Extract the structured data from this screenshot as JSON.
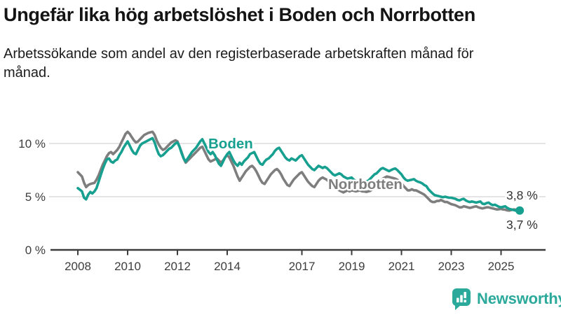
{
  "header": {
    "title": "Ungefär lika hög arbetslöshet i Boden och Norrbotten",
    "subtitle": "Arbetssökande som andel av den registerbaserade arbetskraften månad för månad."
  },
  "footer": {
    "brand": "Newsworthy",
    "logo_icon": "bar-chart-speech-bubble-icon"
  },
  "colors": {
    "boden_line": "#17a08f",
    "norrbotten_line": "#7e7e7e",
    "brand_teal": "#2ba99a",
    "grid": "#dcdcdc",
    "axis": "#3c3c3c",
    "tick_text": "#3d3d3d",
    "end_label_text": "#333333"
  },
  "chart_data": {
    "type": "line",
    "title": "Ungefär lika hög arbetslöshet i Boden och Norrbotten",
    "xlabel": "",
    "ylabel": "",
    "x_unit": "month",
    "x_start": "2008-01",
    "x_end": "2025-10",
    "xlim": [
      2008,
      2026.8
    ],
    "ylim": [
      0,
      12.2
    ],
    "grid": "horizontal",
    "legend_position": "inline-labels",
    "yticks": [
      {
        "v": 0,
        "label": "0 %"
      },
      {
        "v": 5,
        "label": "5 %"
      },
      {
        "v": 10,
        "label": "10 %"
      }
    ],
    "xticks": [
      {
        "v": 2008,
        "label": "2008"
      },
      {
        "v": 2010,
        "label": "2010"
      },
      {
        "v": 2012,
        "label": "2012"
      },
      {
        "v": 2014,
        "label": "2014"
      },
      {
        "v": 2017,
        "label": "2017"
      },
      {
        "v": 2019,
        "label": "2019"
      },
      {
        "v": 2021,
        "label": "2021"
      },
      {
        "v": 2023,
        "label": "2023"
      },
      {
        "v": 2025,
        "label": "2025"
      }
    ],
    "series": [
      {
        "name": "Boden",
        "color": "#17a08f",
        "end_label": "3,7 %",
        "end_dot": true,
        "values": [
          5.8,
          5.65,
          5.5,
          4.9,
          4.75,
          5.2,
          5.45,
          5.3,
          5.5,
          5.8,
          6.4,
          7.0,
          7.6,
          8.1,
          8.5,
          8.6,
          8.3,
          8.2,
          8.4,
          8.5,
          8.9,
          9.2,
          9.6,
          9.9,
          10.2,
          9.8,
          9.4,
          9.1,
          9.0,
          9.4,
          9.8,
          10.0,
          10.1,
          10.2,
          10.3,
          10.4,
          10.5,
          10.1,
          9.5,
          9.0,
          8.8,
          8.9,
          9.1,
          9.3,
          9.5,
          9.6,
          9.8,
          10.0,
          10.1,
          9.7,
          9.1,
          8.6,
          8.3,
          8.6,
          8.9,
          9.2,
          9.4,
          9.6,
          9.9,
          10.2,
          10.4,
          10.0,
          9.6,
          9.2,
          9.0,
          9.2,
          8.9,
          8.5,
          8.1,
          7.9,
          8.3,
          8.7,
          9.0,
          9.2,
          8.8,
          8.4,
          8.1,
          7.9,
          8.2,
          8.0,
          8.3,
          8.5,
          8.7,
          9.0,
          9.1,
          9.2,
          8.8,
          8.4,
          8.1,
          8.0,
          8.3,
          8.5,
          8.6,
          8.8,
          9.0,
          9.3,
          9.5,
          9.6,
          9.3,
          9.0,
          8.7,
          8.5,
          8.4,
          8.6,
          8.5,
          8.4,
          8.6,
          8.8,
          8.9,
          8.6,
          8.3,
          8.0,
          7.8,
          7.6,
          7.5,
          7.7,
          7.9,
          7.8,
          7.7,
          7.8,
          7.7,
          7.5,
          7.3,
          7.1,
          7.0,
          7.1,
          7.2,
          7.1,
          6.9,
          6.8,
          6.7,
          6.75,
          6.8,
          6.6,
          6.5,
          6.4,
          6.3,
          6.35,
          6.4,
          6.45,
          6.5,
          6.7,
          6.9,
          7.1,
          7.2,
          7.4,
          7.6,
          7.7,
          7.6,
          7.5,
          7.4,
          7.5,
          7.6,
          7.65,
          7.5,
          7.3,
          7.1,
          6.8,
          6.6,
          6.5,
          6.55,
          6.6,
          6.65,
          6.5,
          6.4,
          6.35,
          6.25,
          6.1,
          6.0,
          5.7,
          5.5,
          5.3,
          5.15,
          5.1,
          5.05,
          5.0,
          4.95,
          5.0,
          4.95,
          4.9,
          4.9,
          4.85,
          4.8,
          4.7,
          4.65,
          4.75,
          4.8,
          4.65,
          4.55,
          4.5,
          4.55,
          4.5,
          4.45,
          4.5,
          4.55,
          4.35,
          4.3,
          4.4,
          4.45,
          4.3,
          4.2,
          4.25,
          4.15,
          4.05,
          4.0,
          4.05,
          4.1,
          3.95,
          3.85,
          3.8,
          3.75,
          3.7,
          3.7,
          3.7
        ]
      },
      {
        "name": "Norrbotten",
        "color": "#7e7e7e",
        "end_label": "3,8 %",
        "end_dot": false,
        "values": [
          7.3,
          7.1,
          6.9,
          6.3,
          5.9,
          6.1,
          6.2,
          6.25,
          6.3,
          6.6,
          7.0,
          7.5,
          8.0,
          8.4,
          8.8,
          9.1,
          9.2,
          9.0,
          9.2,
          9.4,
          9.7,
          10.1,
          10.5,
          10.9,
          11.1,
          10.9,
          10.6,
          10.3,
          10.1,
          10.2,
          10.4,
          10.6,
          10.8,
          10.9,
          11.0,
          11.05,
          11.1,
          10.8,
          10.3,
          9.9,
          9.6,
          9.4,
          9.5,
          9.7,
          9.9,
          10.1,
          10.2,
          10.3,
          10.2,
          9.7,
          9.2,
          8.6,
          8.2,
          8.4,
          8.6,
          8.8,
          9.0,
          9.2,
          9.4,
          9.6,
          9.7,
          9.3,
          8.9,
          8.5,
          8.3,
          8.4,
          8.5,
          8.6,
          8.4,
          8.2,
          8.4,
          8.7,
          8.9,
          8.7,
          8.3,
          7.9,
          7.4,
          6.9,
          6.5,
          6.8,
          7.1,
          7.4,
          7.6,
          7.8,
          7.9,
          7.7,
          7.4,
          7.0,
          6.6,
          6.3,
          6.2,
          6.5,
          6.8,
          7.1,
          7.3,
          7.5,
          7.6,
          7.4,
          7.1,
          6.7,
          6.4,
          6.1,
          6.0,
          6.3,
          6.6,
          6.8,
          7.0,
          7.2,
          7.3,
          7.0,
          6.7,
          6.4,
          6.2,
          6.0,
          5.9,
          6.2,
          6.5,
          6.7,
          6.8,
          6.7,
          6.6,
          6.4,
          6.2,
          6.0,
          5.8,
          5.7,
          5.6,
          5.5,
          5.4,
          5.5,
          5.6,
          5.5,
          5.6,
          5.55,
          5.5,
          5.55,
          5.6,
          5.5,
          5.5,
          5.45,
          5.5,
          5.55,
          5.7,
          5.85,
          6.0,
          6.3,
          6.5,
          6.7,
          6.8,
          6.9,
          6.85,
          6.8,
          6.75,
          6.7,
          6.6,
          6.45,
          6.3,
          6.0,
          5.8,
          5.6,
          5.6,
          5.7,
          5.6,
          5.6,
          5.5,
          5.4,
          5.3,
          5.2,
          5.0,
          4.8,
          4.6,
          4.5,
          4.5,
          4.6,
          4.6,
          4.7,
          4.6,
          4.5,
          4.5,
          4.4,
          4.3,
          4.25,
          4.2,
          4.1,
          4.0,
          4.0,
          4.1,
          4.05,
          4.0,
          3.95,
          4.0,
          4.05,
          4.1,
          4.0,
          3.95,
          3.9,
          3.95,
          4.0,
          4.0,
          3.95,
          3.9,
          3.85,
          3.8,
          3.82,
          3.85,
          3.8,
          3.78,
          3.72,
          3.7,
          3.75,
          3.8,
          3.78,
          3.79,
          3.8
        ]
      }
    ]
  }
}
